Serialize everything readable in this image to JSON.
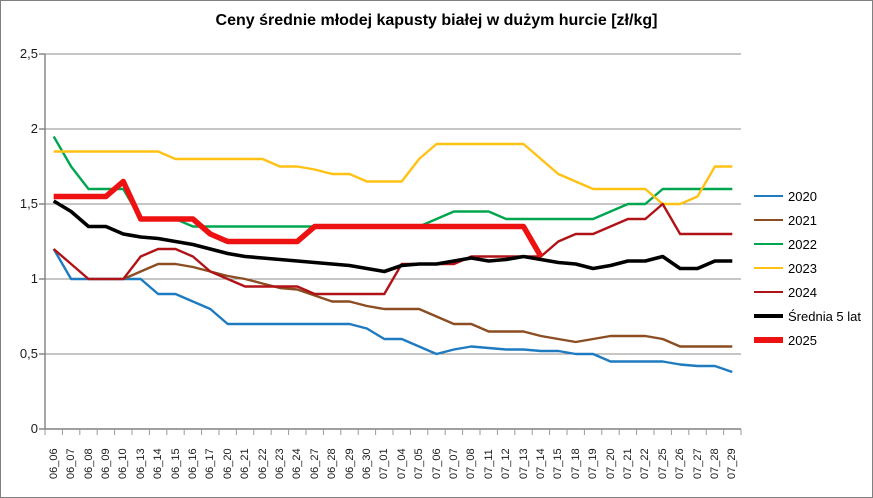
{
  "chart_data": {
    "type": "line",
    "title": "Ceny średnie młodej kapusty białej w dużym hurcie [zł/kg]",
    "xlabel": "",
    "ylabel": "",
    "ylim": [
      0,
      2.5
    ],
    "grid": true,
    "legend_position": "right",
    "y_tick_labels": [
      "0",
      "0,5",
      "1",
      "1,5",
      "2",
      "2,5"
    ],
    "x_labels": [
      "06_06",
      "06_07",
      "06_08",
      "06_09",
      "06_10",
      "06_13",
      "06_14",
      "06_15",
      "06_16",
      "06_17",
      "06_20",
      "06_21",
      "06_22",
      "06_23",
      "06_24",
      "06_27",
      "06_28",
      "06_29",
      "06_30",
      "07_01",
      "07_04",
      "07_05",
      "07_06",
      "07_07",
      "07_08",
      "07_11",
      "07_12",
      "07_13",
      "07_14",
      "07_15",
      "07_18",
      "07_19",
      "07_20",
      "07_21",
      "07_22",
      "07_25",
      "07_26",
      "07_27",
      "07_28",
      "07_29"
    ],
    "series": [
      {
        "name": "2020",
        "color": "#1F7BC0",
        "width": 2.4,
        "values": [
          1.2,
          1.0,
          1.0,
          1.0,
          1.0,
          1.0,
          0.9,
          0.9,
          0.85,
          0.8,
          0.7,
          0.7,
          0.7,
          0.7,
          0.7,
          0.7,
          0.7,
          0.7,
          0.67,
          0.6,
          0.6,
          0.55,
          0.5,
          0.53,
          0.55,
          0.54,
          0.53,
          0.53,
          0.52,
          0.52,
          0.5,
          0.5,
          0.45,
          0.45,
          0.45,
          0.45,
          0.43,
          0.42,
          0.42,
          0.38
        ]
      },
      {
        "name": "2021",
        "color": "#8B4D21",
        "width": 2.4,
        "values": [
          null,
          null,
          null,
          null,
          1.0,
          1.05,
          1.1,
          1.1,
          1.08,
          1.05,
          1.02,
          1.0,
          0.97,
          0.94,
          0.93,
          0.89,
          0.85,
          0.85,
          0.82,
          0.8,
          0.8,
          0.8,
          0.75,
          0.7,
          0.7,
          0.65,
          0.65,
          0.65,
          0.62,
          0.6,
          0.58,
          0.6,
          0.62,
          0.62,
          0.62,
          0.6,
          0.55,
          0.55,
          0.55,
          0.55
        ]
      },
      {
        "name": "2022",
        "color": "#00A550",
        "width": 2.4,
        "values": [
          1.95,
          1.75,
          1.6,
          1.6,
          1.6,
          1.4,
          1.4,
          1.4,
          1.35,
          1.35,
          1.35,
          1.35,
          1.35,
          1.35,
          1.35,
          1.35,
          1.35,
          1.35,
          1.35,
          1.35,
          1.35,
          1.35,
          1.4,
          1.45,
          1.45,
          1.45,
          1.4,
          1.4,
          1.4,
          1.4,
          1.4,
          1.4,
          1.45,
          1.5,
          1.5,
          1.6,
          1.6,
          1.6,
          1.6,
          1.6
        ]
      },
      {
        "name": "2023",
        "color": "#FFC214",
        "width": 2.4,
        "values": [
          1.85,
          1.85,
          1.85,
          1.85,
          1.85,
          1.85,
          1.85,
          1.8,
          1.8,
          1.8,
          1.8,
          1.8,
          1.8,
          1.75,
          1.75,
          1.73,
          1.7,
          1.7,
          1.65,
          1.65,
          1.65,
          1.8,
          1.9,
          1.9,
          1.9,
          1.9,
          1.9,
          1.9,
          1.8,
          1.7,
          1.65,
          1.6,
          1.6,
          1.6,
          1.6,
          1.5,
          1.5,
          1.55,
          1.75,
          1.75
        ]
      },
      {
        "name": "2024",
        "color": "#B01317",
        "width": 2.4,
        "values": [
          1.2,
          1.1,
          1.0,
          1.0,
          1.0,
          1.15,
          1.2,
          1.2,
          1.15,
          1.05,
          1.0,
          0.95,
          0.95,
          0.95,
          0.95,
          0.9,
          0.9,
          0.9,
          0.9,
          0.9,
          1.1,
          1.1,
          1.1,
          1.1,
          1.15,
          1.15,
          1.15,
          1.15,
          1.15,
          1.25,
          1.3,
          1.3,
          1.35,
          1.4,
          1.4,
          1.5,
          1.3,
          1.3,
          1.3,
          1.3
        ]
      },
      {
        "name": "Średnia 5 lat",
        "color": "#000000",
        "width": 3.6,
        "values": [
          1.52,
          1.45,
          1.35,
          1.35,
          1.3,
          1.28,
          1.27,
          1.25,
          1.23,
          1.2,
          1.17,
          1.15,
          1.14,
          1.13,
          1.12,
          1.11,
          1.1,
          1.09,
          1.07,
          1.05,
          1.09,
          1.1,
          1.1,
          1.12,
          1.14,
          1.12,
          1.13,
          1.15,
          1.13,
          1.11,
          1.1,
          1.07,
          1.09,
          1.12,
          1.12,
          1.15,
          1.07,
          1.07,
          1.12,
          1.12
        ]
      },
      {
        "name": "2025",
        "color": "#EE1111",
        "width": 5.5,
        "values": [
          1.55,
          1.55,
          1.55,
          1.55,
          1.65,
          1.4,
          1.4,
          1.4,
          1.4,
          1.3,
          1.25,
          1.25,
          1.25,
          1.25,
          1.25,
          1.35,
          1.35,
          1.35,
          1.35,
          1.35,
          1.35,
          1.35,
          1.35,
          1.35,
          1.35,
          1.35,
          1.35,
          1.35,
          1.15,
          null,
          null,
          null,
          null,
          null,
          null,
          null,
          null,
          null,
          null,
          null
        ]
      }
    ],
    "colors": {
      "gridline": "#8C8C8C",
      "axis": "#808080",
      "tick": "#999999",
      "frame": "#808080",
      "background": "#FFFFFF"
    }
  }
}
